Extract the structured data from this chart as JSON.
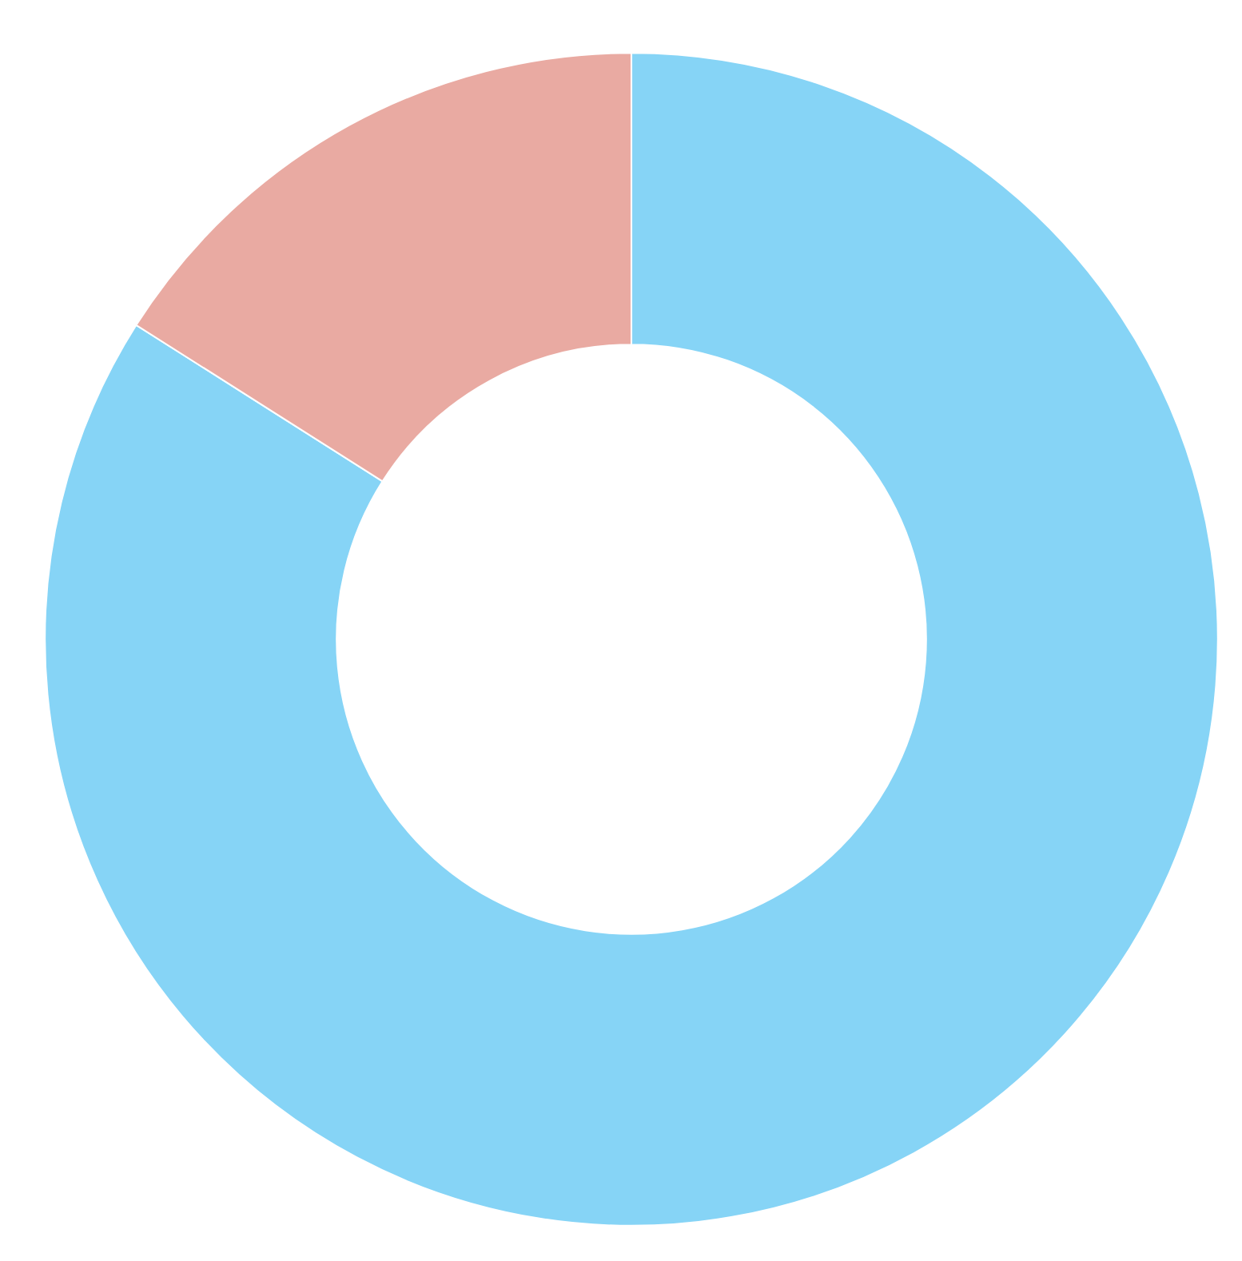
{
  "chart_data": {
    "type": "donut",
    "categories": [
      null,
      null
    ],
    "values": [
      84,
      16
    ],
    "colors": [
      "#86d4f6",
      "#e9aaa2"
    ]
  }
}
